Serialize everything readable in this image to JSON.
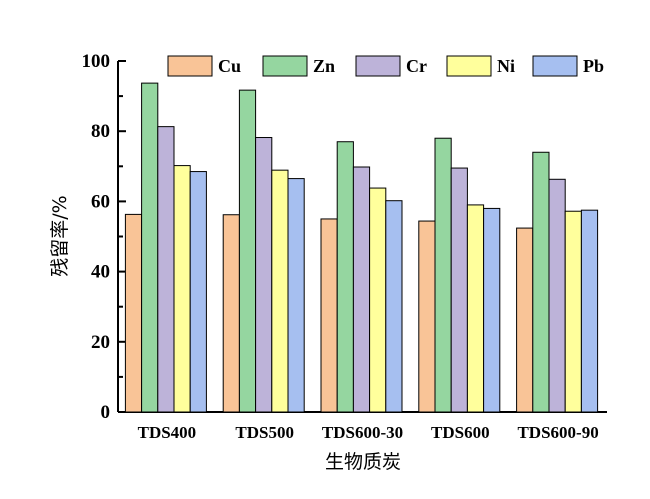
{
  "chart_data": {
    "type": "bar",
    "title": "",
    "xlabel": "生物质炭",
    "ylabel": "残留率/%",
    "ylim": [
      0,
      100
    ],
    "yticks": [
      0,
      20,
      40,
      60,
      80,
      100
    ],
    "grid": false,
    "legend_position": "top",
    "categories": [
      "TDS400",
      "TDS500",
      "TDS600-30",
      "TDS600",
      "TDS600-90"
    ],
    "series": [
      {
        "name": "Cu",
        "color": "#F9C497",
        "values": [
          56.3,
          56.2,
          55.0,
          54.4,
          52.4
        ]
      },
      {
        "name": "Zn",
        "color": "#95D6A0",
        "values": [
          93.7,
          91.7,
          77.0,
          78.0,
          74.0
        ]
      },
      {
        "name": "Cr",
        "color": "#BDB3D9",
        "values": [
          81.3,
          78.2,
          69.8,
          69.5,
          66.3
        ]
      },
      {
        "name": "Ni",
        "color": "#FFFF9C",
        "values": [
          70.2,
          68.9,
          63.8,
          59.0,
          57.2
        ]
      },
      {
        "name": "Pb",
        "color": "#A6BFF0",
        "values": [
          68.5,
          66.5,
          60.2,
          58.0,
          57.5
        ]
      }
    ]
  }
}
